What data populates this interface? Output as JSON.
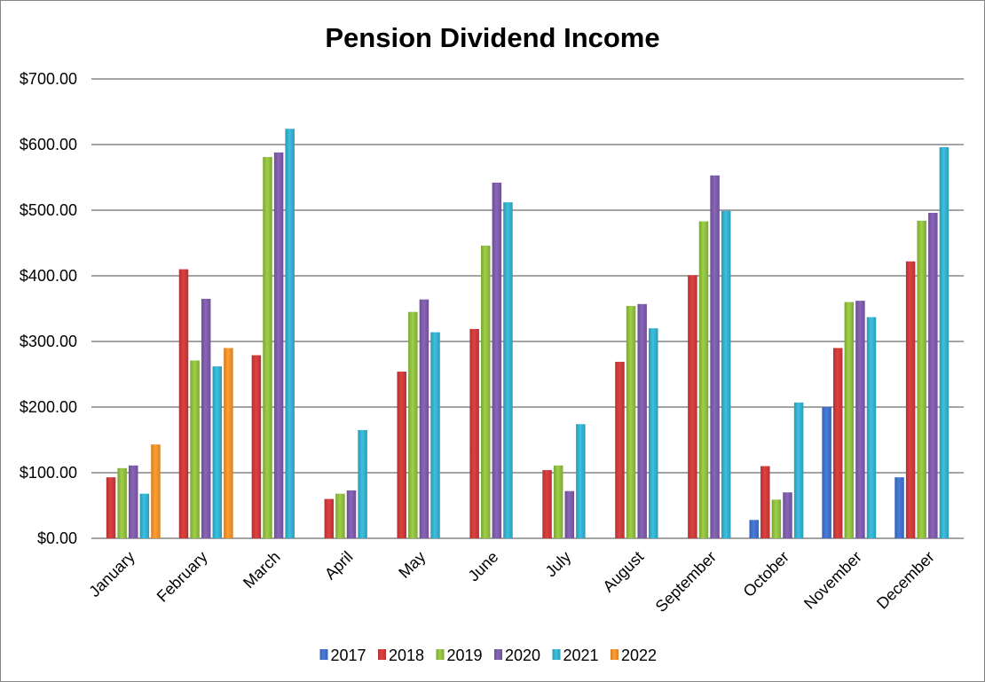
{
  "chart_data": {
    "type": "bar",
    "title": "Pension Dividend Income",
    "xlabel": "",
    "ylabel": "",
    "ylim": [
      0,
      700
    ],
    "yticks": [
      "$0.00",
      "$100.00",
      "$200.00",
      "$300.00",
      "$400.00",
      "$500.00",
      "$600.00",
      "$700.00"
    ],
    "grid": true,
    "legend_position": "bottom",
    "categories": [
      "January",
      "February",
      "March",
      "April",
      "May",
      "June",
      "July",
      "August",
      "September",
      "October",
      "November",
      "December"
    ],
    "series": [
      {
        "name": "2017",
        "color": "#3f6fc6",
        "values": [
          null,
          null,
          null,
          null,
          null,
          null,
          null,
          null,
          null,
          28,
          200,
          93
        ]
      },
      {
        "name": "2018",
        "color": "#c8393a",
        "values": [
          93,
          410,
          279,
          60,
          254,
          319,
          104,
          269,
          401,
          110,
          290,
          422
        ]
      },
      {
        "name": "2019",
        "color": "#8dba3f",
        "values": [
          107,
          271,
          581,
          68,
          345,
          446,
          111,
          354,
          483,
          59,
          360,
          484
        ]
      },
      {
        "name": "2020",
        "color": "#7b5aa6",
        "values": [
          111,
          365,
          588,
          73,
          364,
          542,
          72,
          357,
          553,
          70,
          362,
          496
        ]
      },
      {
        "name": "2021",
        "color": "#34acc9",
        "values": [
          68,
          262,
          624,
          165,
          314,
          512,
          174,
          320,
          499,
          207,
          337,
          596
        ]
      },
      {
        "name": "2022",
        "color": "#f18e2c",
        "values": [
          143,
          290,
          null,
          null,
          null,
          null,
          null,
          null,
          null,
          null,
          null,
          null
        ]
      }
    ]
  }
}
